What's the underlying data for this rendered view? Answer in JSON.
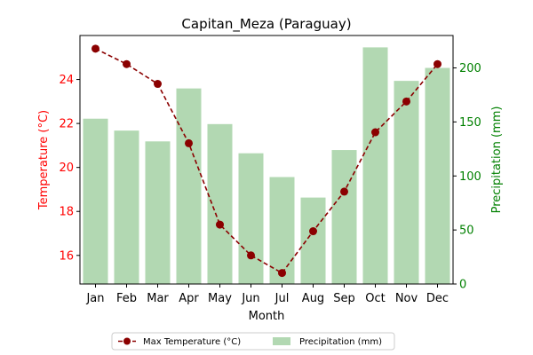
{
  "chart_data": {
    "type": "bar+line",
    "title": "Capitan_Meza (Paraguay)",
    "xlabel": "Month",
    "categories": [
      "Jan",
      "Feb",
      "Mar",
      "Apr",
      "May",
      "Jun",
      "Jul",
      "Aug",
      "Sep",
      "Oct",
      "Nov",
      "Dec"
    ],
    "series": [
      {
        "name": "Max Temperature (°C)",
        "kind": "line",
        "axis": "left",
        "values": [
          25.4,
          24.7,
          23.8,
          21.1,
          17.4,
          16.0,
          15.2,
          17.1,
          18.9,
          21.6,
          23.0,
          24.7
        ]
      },
      {
        "name": "Precipitation (mm)",
        "kind": "bar",
        "axis": "right",
        "values": [
          153,
          142,
          132,
          181,
          148,
          121,
          99,
          80,
          124,
          219,
          188,
          200
        ]
      }
    ],
    "y_left": {
      "label": "Temperature (°C)",
      "range": [
        14.7,
        26.0
      ],
      "ticks": [
        16,
        18,
        20,
        22,
        24
      ],
      "color": "#ff0000"
    },
    "y_right": {
      "label": "Precipitation (mm)",
      "range": [
        0,
        230
      ],
      "ticks": [
        0,
        50,
        100,
        150,
        200
      ],
      "color": "#008000"
    },
    "colors": {
      "line": "#8b0000",
      "bar": "#b2d8b2"
    },
    "grid": false,
    "legend_position": "bottom-center"
  }
}
